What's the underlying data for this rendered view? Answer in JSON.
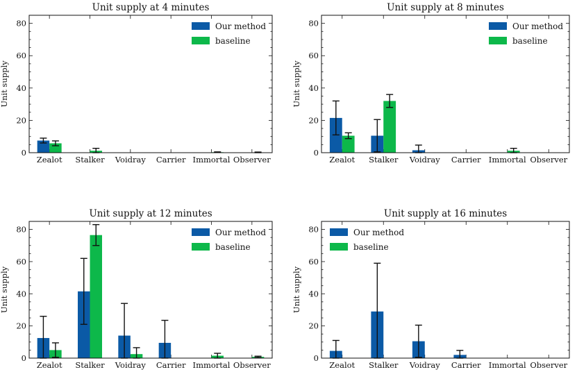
{
  "colors": {
    "our_method": "#0b5aa6",
    "baseline": "#0db84a",
    "error_bar": "#111111",
    "axis": "#111111"
  },
  "shared": {
    "ylabel": "Unit supply",
    "legend_location": "top-right"
  },
  "chart_data": [
    {
      "type": "bar",
      "title": "Unit supply at 4 minutes",
      "xlabel": "",
      "ylabel": "Unit supply",
      "ylim": [
        0,
        85
      ],
      "yticks": [
        0,
        20,
        40,
        60,
        80
      ],
      "categories": [
        "Zealot",
        "Stalker",
        "Voidray",
        "Carrier",
        "Immortal",
        "Observer"
      ],
      "series": [
        {
          "name": "Our method",
          "values": [
            7.5,
            0,
            0,
            0,
            0,
            0
          ],
          "errors": [
            1.5,
            0,
            0,
            0,
            0,
            0
          ]
        },
        {
          "name": "baseline",
          "values": [
            5.8,
            1.2,
            0,
            0,
            0.3,
            0.2
          ],
          "errors": [
            1.5,
            1.5,
            0,
            0,
            0.2,
            0.2
          ]
        }
      ],
      "legend": [
        "Our method",
        "baseline"
      ]
    },
    {
      "type": "bar",
      "title": "Unit supply at 8 minutes",
      "xlabel": "",
      "ylabel": "Unit supply",
      "ylim": [
        0,
        85
      ],
      "yticks": [
        0,
        20,
        40,
        60,
        80
      ],
      "categories": [
        "Zealot",
        "Stalker",
        "Voidray",
        "Carrier",
        "Immortal",
        "Observer"
      ],
      "series": [
        {
          "name": "Our method",
          "values": [
            21.5,
            10.5,
            1.5,
            0,
            0,
            0
          ],
          "errors": [
            10.5,
            10.0,
            3.2,
            0,
            0,
            0
          ]
        },
        {
          "name": "baseline",
          "values": [
            10.5,
            32.0,
            0,
            0,
            1.2,
            0
          ],
          "errors": [
            1.8,
            4.0,
            0,
            0,
            1.5,
            0
          ]
        }
      ],
      "legend": [
        "Our method",
        "baseline"
      ]
    },
    {
      "type": "bar",
      "title": "Unit supply at 12 minutes",
      "xlabel": "",
      "ylabel": "Unit supply",
      "ylim": [
        0,
        85
      ],
      "yticks": [
        0,
        20,
        40,
        60,
        80
      ],
      "categories": [
        "Zealot",
        "Stalker",
        "Voidray",
        "Carrier",
        "Immortal",
        "Observer"
      ],
      "series": [
        {
          "name": "Our method",
          "values": [
            12.5,
            41.5,
            14.0,
            9.5,
            0,
            0
          ],
          "errors": [
            13.5,
            20.5,
            20.0,
            14.0,
            0,
            0
          ]
        },
        {
          "name": "baseline",
          "values": [
            5.0,
            76.5,
            2.5,
            0,
            1.5,
            0.8
          ],
          "errors": [
            4.5,
            6.5,
            4.0,
            0,
            1.5,
            0.4
          ]
        }
      ],
      "legend": [
        "Our method",
        "baseline"
      ]
    },
    {
      "type": "bar",
      "title": "Unit supply at 16 minutes",
      "xlabel": "",
      "ylabel": "Unit supply",
      "ylim": [
        0,
        85
      ],
      "yticks": [
        0,
        20,
        40,
        60,
        80
      ],
      "categories": [
        "Zealot",
        "Stalker",
        "Voidray",
        "Carrier",
        "Immortal",
        "Observer"
      ],
      "series": [
        {
          "name": "Our method",
          "values": [
            4.5,
            29.0,
            10.5,
            2.0,
            0,
            0
          ],
          "errors": [
            6.5,
            30.0,
            10.0,
            2.8,
            0,
            0
          ]
        },
        {
          "name": "baseline",
          "values": [
            0,
            0,
            0,
            0,
            0,
            0
          ],
          "errors": [
            0,
            0,
            0,
            0,
            0,
            0
          ]
        }
      ],
      "legend": [
        "Our method",
        "baseline"
      ]
    }
  ]
}
